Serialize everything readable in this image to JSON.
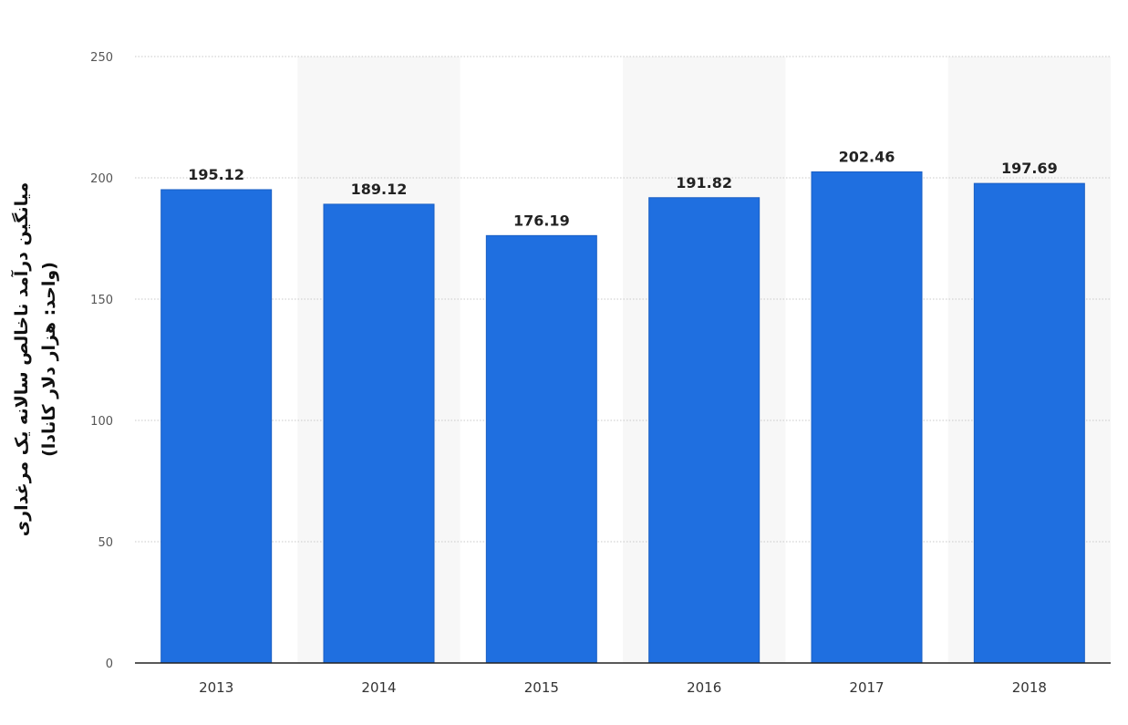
{
  "chart_data": {
    "type": "bar",
    "categories": [
      "2013",
      "2014",
      "2015",
      "2016",
      "2017",
      "2018"
    ],
    "values": [
      195.12,
      189.12,
      176.19,
      191.82,
      202.46,
      197.69
    ],
    "data_labels": [
      "195.12",
      "189.12",
      "176.19",
      "191.82",
      "202.46",
      "197.69"
    ],
    "title": "",
    "xlabel": "",
    "ylabel": "میانگین درآمد ناخالص سالانه یک مرغداری",
    "ylabel_unit": "(واحد: هزار دلار کانادا)",
    "ylim": [
      0,
      250
    ],
    "yticks": [
      0,
      50,
      100,
      150,
      200,
      250
    ],
    "ytick_labels": [
      "0",
      "50",
      "100",
      "150",
      "200",
      "250"
    ],
    "grid": true,
    "legend": "none",
    "bar_color": "#1f6fe0",
    "band_color": "#f7f7f7"
  }
}
